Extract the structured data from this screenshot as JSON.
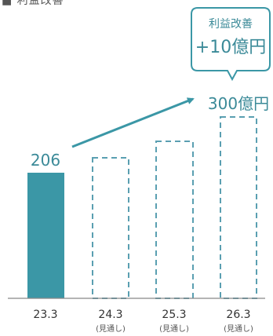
{
  "chart_data": {
    "type": "bar",
    "partial_title": "■ 利益改善",
    "categories": [
      "23.3",
      "24.3",
      "25.3",
      "26.3"
    ],
    "category_notes": [
      "",
      "(見通し)",
      "(見通し)",
      "(見通し)"
    ],
    "values": [
      206,
      null,
      null,
      null
    ],
    "value_labels": [
      "206",
      "",
      "",
      "300億円"
    ],
    "callout": {
      "title": "利益改善",
      "value": "+10億円"
    },
    "arrow": {
      "from": "23.3",
      "to": "26.3"
    },
    "colors": {
      "actual": "#3b97a6",
      "forecast_outline": "#5a9fb1",
      "text": "#3b8a98"
    }
  }
}
